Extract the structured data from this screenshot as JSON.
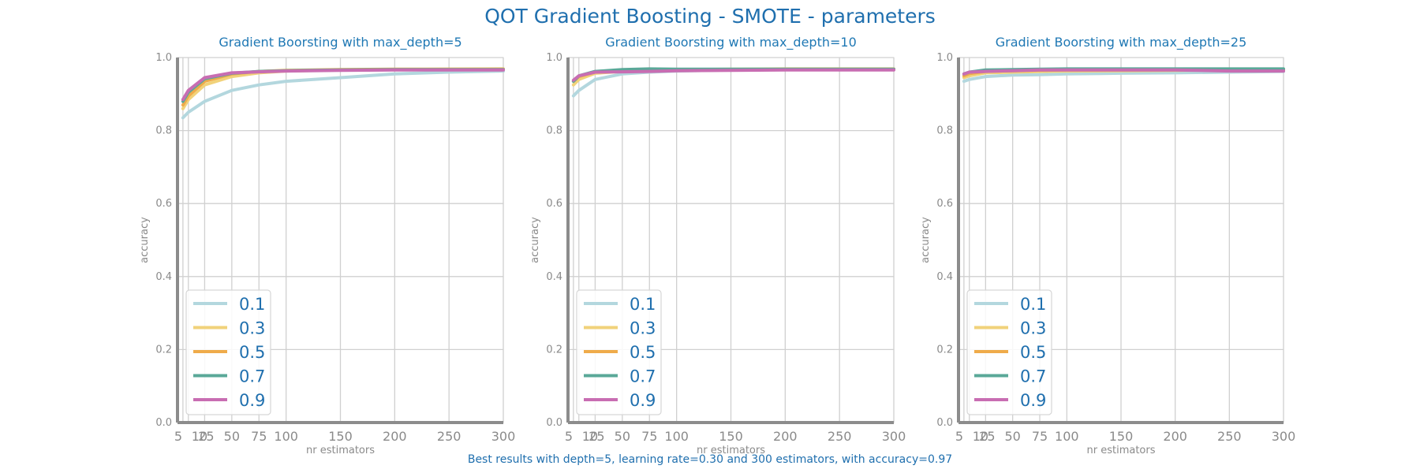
{
  "title": "QOT Gradient Boosting - SMOTE - parameters",
  "footer": "Best results with depth=5, learning rate=0.30 and 300 estimators, with accuracy=0.97",
  "colors": {
    "0.1": "#b3d7de",
    "0.3": "#f1d27a",
    "0.5": "#efab4a",
    "0.7": "#5aa898",
    "0.9": "#c86db2",
    "title": "#1f6fae",
    "axis": "#8c8c8c",
    "grid": "#d0d0d0"
  },
  "chart_data": [
    {
      "type": "line",
      "title": "Gradient Boorsting with max_depth=5",
      "xlabel": "nr estimators",
      "ylabel": "accuracy",
      "xlim": [
        0,
        300
      ],
      "ylim": [
        0,
        1
      ],
      "xticks": [
        5,
        10,
        25,
        50,
        75,
        100,
        150,
        200,
        250,
        300
      ],
      "xtick_labels": [
        "5",
        "10",
        "25",
        "50",
        "75",
        "100",
        "150",
        "200",
        "250",
        "300"
      ],
      "yticks": [
        0.0,
        0.2,
        0.4,
        0.6,
        0.8,
        1.0
      ],
      "ytick_labels": [
        "0.0",
        "0.2",
        "0.4",
        "0.6",
        "0.8",
        "1.0"
      ],
      "legend_position": "lower-left",
      "x": [
        5,
        10,
        25,
        50,
        75,
        100,
        150,
        200,
        250,
        300
      ],
      "series": [
        {
          "name": "0.1",
          "values": [
            0.835,
            0.85,
            0.88,
            0.91,
            0.925,
            0.935,
            0.945,
            0.955,
            0.96,
            0.963
          ]
        },
        {
          "name": "0.3",
          "values": [
            0.86,
            0.885,
            0.925,
            0.948,
            0.958,
            0.963,
            0.966,
            0.967,
            0.968,
            0.969
          ]
        },
        {
          "name": "0.5",
          "values": [
            0.87,
            0.895,
            0.935,
            0.955,
            0.962,
            0.965,
            0.967,
            0.968,
            0.968,
            0.968
          ]
        },
        {
          "name": "0.7",
          "values": [
            0.88,
            0.905,
            0.942,
            0.957,
            0.962,
            0.964,
            0.966,
            0.967,
            0.967,
            0.967
          ]
        },
        {
          "name": "0.9",
          "values": [
            0.885,
            0.91,
            0.945,
            0.958,
            0.961,
            0.963,
            0.965,
            0.966,
            0.966,
            0.966
          ]
        }
      ]
    },
    {
      "type": "line",
      "title": "Gradient Boorsting with max_depth=10",
      "xlabel": "nr estimators",
      "ylabel": "accuracy",
      "xlim": [
        0,
        300
      ],
      "ylim": [
        0,
        1
      ],
      "xticks": [
        5,
        10,
        25,
        50,
        75,
        100,
        150,
        200,
        250,
        300
      ],
      "xtick_labels": [
        "5",
        "10",
        "25",
        "50",
        "75",
        "100",
        "150",
        "200",
        "250",
        "300"
      ],
      "yticks": [
        0.0,
        0.2,
        0.4,
        0.6,
        0.8,
        1.0
      ],
      "ytick_labels": [
        "0.0",
        "0.2",
        "0.4",
        "0.6",
        "0.8",
        "1.0"
      ],
      "legend_position": "lower-left",
      "x": [
        5,
        10,
        25,
        50,
        75,
        100,
        150,
        200,
        250,
        300
      ],
      "series": [
        {
          "name": "0.1",
          "values": [
            0.895,
            0.91,
            0.94,
            0.955,
            0.96,
            0.963,
            0.966,
            0.967,
            0.968,
            0.968
          ]
        },
        {
          "name": "0.3",
          "values": [
            0.925,
            0.94,
            0.957,
            0.962,
            0.965,
            0.967,
            0.968,
            0.969,
            0.969,
            0.969
          ]
        },
        {
          "name": "0.5",
          "values": [
            0.935,
            0.948,
            0.96,
            0.964,
            0.966,
            0.967,
            0.967,
            0.968,
            0.968,
            0.968
          ]
        },
        {
          "name": "0.7",
          "values": [
            0.935,
            0.95,
            0.962,
            0.967,
            0.969,
            0.968,
            0.968,
            0.968,
            0.968,
            0.968
          ]
        },
        {
          "name": "0.9",
          "values": [
            0.938,
            0.95,
            0.96,
            0.961,
            0.962,
            0.964,
            0.965,
            0.966,
            0.966,
            0.966
          ]
        }
      ]
    },
    {
      "type": "line",
      "title": "Gradient Boorsting with max_depth=25",
      "xlabel": "nr estimators",
      "ylabel": "accuracy",
      "xlim": [
        0,
        300
      ],
      "ylim": [
        0,
        1
      ],
      "xticks": [
        5,
        10,
        25,
        50,
        75,
        100,
        150,
        200,
        250,
        300
      ],
      "xtick_labels": [
        "5",
        "10",
        "25",
        "50",
        "75",
        "100",
        "150",
        "200",
        "250",
        "300"
      ],
      "yticks": [
        0.0,
        0.2,
        0.4,
        0.6,
        0.8,
        1.0
      ],
      "ytick_labels": [
        "0.0",
        "0.2",
        "0.4",
        "0.6",
        "0.8",
        "1.0"
      ],
      "legend_position": "lower-left",
      "x": [
        5,
        10,
        25,
        50,
        75,
        100,
        150,
        200,
        250,
        300
      ],
      "series": [
        {
          "name": "0.1",
          "values": [
            0.935,
            0.94,
            0.948,
            0.952,
            0.953,
            0.955,
            0.957,
            0.958,
            0.96,
            0.962
          ]
        },
        {
          "name": "0.3",
          "values": [
            0.945,
            0.95,
            0.958,
            0.96,
            0.962,
            0.963,
            0.964,
            0.965,
            0.966,
            0.966
          ]
        },
        {
          "name": "0.5",
          "values": [
            0.95,
            0.956,
            0.962,
            0.964,
            0.965,
            0.966,
            0.966,
            0.966,
            0.966,
            0.966
          ]
        },
        {
          "name": "0.7",
          "values": [
            0.955,
            0.96,
            0.966,
            0.967,
            0.968,
            0.969,
            0.969,
            0.969,
            0.969,
            0.969
          ]
        },
        {
          "name": "0.9",
          "values": [
            0.955,
            0.96,
            0.962,
            0.964,
            0.966,
            0.966,
            0.966,
            0.966,
            0.963,
            0.963
          ]
        }
      ]
    }
  ]
}
